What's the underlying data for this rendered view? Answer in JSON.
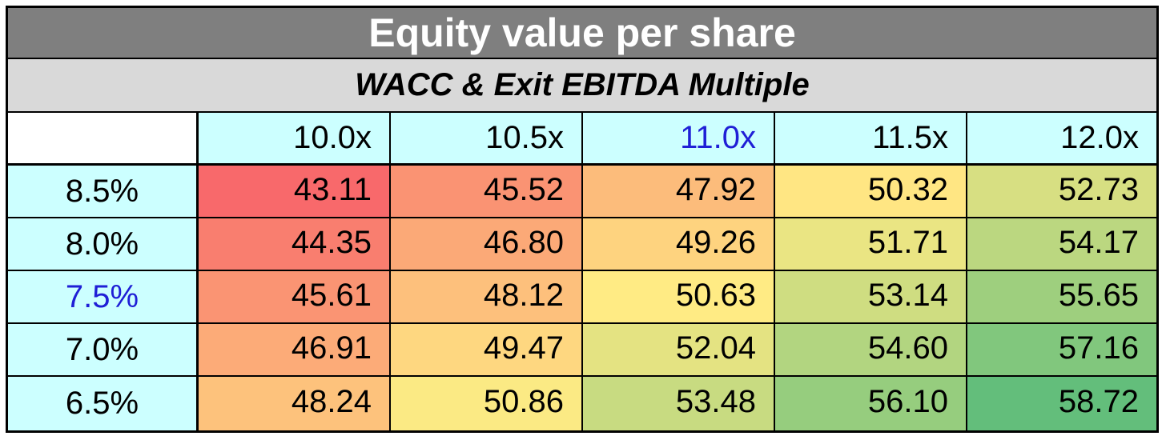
{
  "chart_data": {
    "type": "heatmap",
    "title": "Equity value per share",
    "subtitle": "WACC & Exit EBITDA Multiple",
    "columns": [
      "10.0x",
      "10.5x",
      "11.0x",
      "11.5x",
      "12.0x"
    ],
    "rows": [
      "8.5%",
      "8.0%",
      "7.5%",
      "7.0%",
      "6.5%"
    ],
    "highlight_column": "11.0x",
    "highlight_row": "7.5%",
    "values": [
      [
        "43.11",
        "45.52",
        "47.92",
        "50.32",
        "52.73"
      ],
      [
        "44.35",
        "46.80",
        "49.26",
        "51.71",
        "54.17"
      ],
      [
        "45.61",
        "48.12",
        "50.63",
        "53.14",
        "55.65"
      ],
      [
        "46.91",
        "49.47",
        "52.04",
        "54.60",
        "57.16"
      ],
      [
        "48.24",
        "50.86",
        "53.48",
        "56.10",
        "58.72"
      ]
    ],
    "color_scale": {
      "low": "#f8696b",
      "mid": "#ffeb84",
      "high": "#63be7b"
    },
    "header_color": "#7f7f7f",
    "subheader_color": "#d9d9d9",
    "label_color": "#ccffff",
    "highlight_text_color": "#1f1fd6"
  }
}
